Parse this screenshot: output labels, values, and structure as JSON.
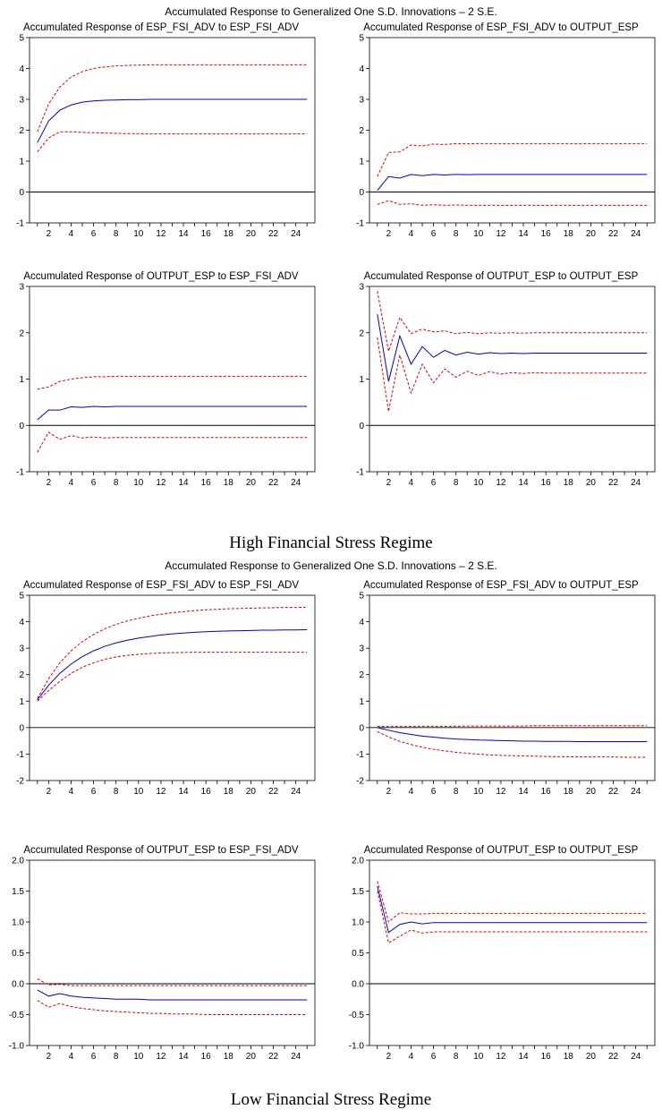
{
  "regimes": [
    {
      "supertitle": "Accumulated Response to Generalized One S.D. Innovations – 2 S.E.",
      "caption": "High Financial Stress Regime"
    },
    {
      "supertitle": "Accumulated Response to Generalized One S.D. Innovations – 2 S.E.",
      "caption": "Low Financial Stress Regime"
    }
  ],
  "colors": {
    "response": "#0000cc",
    "band": "#dd0000",
    "zero_line": "#000000"
  },
  "chart_data": [
    {
      "type": "line",
      "title": "Accumulated Response of ESP_FSI_ADV to ESP_FSI_ADV",
      "x": [
        1,
        2,
        3,
        4,
        5,
        6,
        7,
        8,
        9,
        10,
        11,
        12,
        13,
        14,
        15,
        16,
        17,
        18,
        19,
        20,
        21,
        22,
        23,
        24,
        25
      ],
      "xticks": [
        2,
        4,
        6,
        8,
        10,
        12,
        14,
        16,
        18,
        20,
        22,
        24
      ],
      "ylim": [
        -1,
        5
      ],
      "yticks": [
        -1,
        0,
        1,
        2,
        3,
        4,
        5
      ],
      "ytick_labels": [
        "-1",
        "0",
        "1",
        "2",
        "3",
        "4",
        "5"
      ],
      "series": [
        {
          "values": [
            1.6,
            2.3,
            2.65,
            2.82,
            2.91,
            2.95,
            2.97,
            2.98,
            2.99,
            2.99,
            3.0,
            3.0,
            3.0,
            3.0,
            3.0,
            3.0,
            3.0,
            3.0,
            3.0,
            3.0,
            3.0,
            3.0,
            3.0,
            3.0,
            3.0
          ]
        },
        {
          "values": [
            1.95,
            2.85,
            3.4,
            3.72,
            3.9,
            4.0,
            4.05,
            4.08,
            4.1,
            4.11,
            4.12,
            4.12,
            4.12,
            4.12,
            4.12,
            4.12,
            4.12,
            4.12,
            4.12,
            4.12,
            4.12,
            4.12,
            4.12,
            4.12,
            4.12
          ]
        },
        {
          "values": [
            1.3,
            1.75,
            1.95,
            1.95,
            1.93,
            1.92,
            1.91,
            1.9,
            1.89,
            1.89,
            1.88,
            1.88,
            1.88,
            1.88,
            1.88,
            1.88,
            1.88,
            1.88,
            1.88,
            1.88,
            1.88,
            1.88,
            1.88,
            1.88,
            1.88
          ]
        }
      ]
    },
    {
      "type": "line",
      "title": "Accumulated Response of ESP_FSI_ADV to OUTPUT_ESP",
      "x": [
        1,
        2,
        3,
        4,
        5,
        6,
        7,
        8,
        9,
        10,
        11,
        12,
        13,
        14,
        15,
        16,
        17,
        18,
        19,
        20,
        21,
        22,
        23,
        24,
        25
      ],
      "xticks": [
        2,
        4,
        6,
        8,
        10,
        12,
        14,
        16,
        18,
        20,
        22,
        24
      ],
      "ylim": [
        -1,
        5
      ],
      "yticks": [
        -1,
        0,
        1,
        2,
        3,
        4,
        5
      ],
      "ytick_labels": [
        "-1",
        "0",
        "1",
        "2",
        "3",
        "4",
        "5"
      ],
      "series": [
        {
          "values": [
            0.05,
            0.5,
            0.45,
            0.57,
            0.53,
            0.57,
            0.55,
            0.57,
            0.56,
            0.57,
            0.57,
            0.57,
            0.57,
            0.57,
            0.57,
            0.57,
            0.57,
            0.57,
            0.57,
            0.57,
            0.57,
            0.57,
            0.57,
            0.57,
            0.57
          ]
        },
        {
          "values": [
            0.5,
            1.28,
            1.3,
            1.52,
            1.49,
            1.55,
            1.54,
            1.57,
            1.56,
            1.57,
            1.57,
            1.57,
            1.57,
            1.57,
            1.57,
            1.57,
            1.57,
            1.57,
            1.57,
            1.57,
            1.57,
            1.57,
            1.57,
            1.57,
            1.57
          ]
        },
        {
          "values": [
            -0.4,
            -0.28,
            -0.4,
            -0.38,
            -0.43,
            -0.41,
            -0.43,
            -0.42,
            -0.43,
            -0.43,
            -0.43,
            -0.43,
            -0.43,
            -0.43,
            -0.43,
            -0.43,
            -0.43,
            -0.43,
            -0.43,
            -0.43,
            -0.43,
            -0.43,
            -0.43,
            -0.43,
            -0.43
          ]
        }
      ]
    },
    {
      "type": "line",
      "title": "Accumulated Response of OUTPUT_ESP to ESP_FSI_ADV",
      "x": [
        1,
        2,
        3,
        4,
        5,
        6,
        7,
        8,
        9,
        10,
        11,
        12,
        13,
        14,
        15,
        16,
        17,
        18,
        19,
        20,
        21,
        22,
        23,
        24,
        25
      ],
      "xticks": [
        2,
        4,
        6,
        8,
        10,
        12,
        14,
        16,
        18,
        20,
        22,
        24
      ],
      "ylim": [
        -1,
        3
      ],
      "yticks": [
        -1,
        0,
        1,
        2,
        3
      ],
      "ytick_labels": [
        "-1",
        "0",
        "1",
        "2",
        "3"
      ],
      "series": [
        {
          "values": [
            0.12,
            0.33,
            0.33,
            0.4,
            0.39,
            0.41,
            0.4,
            0.41,
            0.41,
            0.41,
            0.41,
            0.41,
            0.41,
            0.41,
            0.41,
            0.41,
            0.41,
            0.41,
            0.41,
            0.41,
            0.41,
            0.41,
            0.41,
            0.41,
            0.41
          ]
        },
        {
          "values": [
            0.78,
            0.83,
            0.95,
            1.0,
            1.03,
            1.05,
            1.05,
            1.06,
            1.06,
            1.06,
            1.06,
            1.06,
            1.06,
            1.06,
            1.06,
            1.06,
            1.06,
            1.06,
            1.06,
            1.06,
            1.06,
            1.06,
            1.06,
            1.06,
            1.06
          ]
        },
        {
          "values": [
            -0.58,
            -0.15,
            -0.3,
            -0.22,
            -0.27,
            -0.25,
            -0.27,
            -0.26,
            -0.26,
            -0.26,
            -0.26,
            -0.26,
            -0.26,
            -0.26,
            -0.26,
            -0.26,
            -0.26,
            -0.26,
            -0.26,
            -0.26,
            -0.26,
            -0.26,
            -0.26,
            -0.26,
            -0.26
          ]
        }
      ]
    },
    {
      "type": "line",
      "title": "Accumulated Response of OUTPUT_ESP to OUTPUT_ESP",
      "x": [
        1,
        2,
        3,
        4,
        5,
        6,
        7,
        8,
        9,
        10,
        11,
        12,
        13,
        14,
        15,
        16,
        17,
        18,
        19,
        20,
        21,
        22,
        23,
        24,
        25
      ],
      "xticks": [
        2,
        4,
        6,
        8,
        10,
        12,
        14,
        16,
        18,
        20,
        22,
        24
      ],
      "ylim": [
        -1,
        3
      ],
      "yticks": [
        -1,
        0,
        1,
        2,
        3
      ],
      "ytick_labels": [
        "-1",
        "0",
        "1",
        "2",
        "3"
      ],
      "series": [
        {
          "values": [
            2.4,
            0.95,
            1.93,
            1.32,
            1.7,
            1.47,
            1.62,
            1.52,
            1.58,
            1.54,
            1.57,
            1.55,
            1.56,
            1.55,
            1.56,
            1.56,
            1.56,
            1.56,
            1.56,
            1.56,
            1.56,
            1.56,
            1.56,
            1.56,
            1.56
          ]
        },
        {
          "values": [
            2.9,
            1.6,
            2.33,
            1.98,
            2.08,
            2.02,
            2.04,
            1.98,
            2.01,
            1.98,
            2.0,
            1.99,
            2.0,
            1.99,
            2.0,
            2.0,
            2.0,
            2.0,
            2.0,
            2.0,
            2.0,
            2.0,
            2.0,
            2.0,
            2.0
          ]
        },
        {
          "values": [
            1.9,
            0.3,
            1.52,
            0.7,
            1.32,
            0.92,
            1.22,
            1.04,
            1.17,
            1.08,
            1.16,
            1.11,
            1.14,
            1.12,
            1.14,
            1.13,
            1.13,
            1.13,
            1.13,
            1.13,
            1.13,
            1.13,
            1.13,
            1.13,
            1.13
          ]
        }
      ]
    },
    {
      "type": "line",
      "title": "Accumulated Response of ESP_FSI_ADV to ESP_FSI_ADV",
      "x": [
        1,
        2,
        3,
        4,
        5,
        6,
        7,
        8,
        9,
        10,
        11,
        12,
        13,
        14,
        15,
        16,
        17,
        18,
        19,
        20,
        21,
        22,
        23,
        24,
        25
      ],
      "xticks": [
        2,
        4,
        6,
        8,
        10,
        12,
        14,
        16,
        18,
        20,
        22,
        24
      ],
      "ylim": [
        -2,
        5
      ],
      "yticks": [
        -2,
        -1,
        0,
        1,
        2,
        3,
        4,
        5
      ],
      "ytick_labels": [
        "-2",
        "-1",
        "0",
        "1",
        "2",
        "3",
        "4",
        "5"
      ],
      "series": [
        {
          "values": [
            1.05,
            1.6,
            2.05,
            2.4,
            2.68,
            2.9,
            3.07,
            3.2,
            3.3,
            3.38,
            3.44,
            3.5,
            3.54,
            3.57,
            3.6,
            3.62,
            3.64,
            3.65,
            3.66,
            3.67,
            3.68,
            3.68,
            3.69,
            3.69,
            3.7
          ]
        },
        {
          "values": [
            1.1,
            1.85,
            2.45,
            2.9,
            3.25,
            3.52,
            3.73,
            3.9,
            4.03,
            4.13,
            4.22,
            4.28,
            4.34,
            4.38,
            4.42,
            4.45,
            4.47,
            4.49,
            4.5,
            4.51,
            4.52,
            4.53,
            4.54,
            4.54,
            4.55
          ]
        },
        {
          "values": [
            1.0,
            1.4,
            1.75,
            2.05,
            2.28,
            2.45,
            2.58,
            2.67,
            2.73,
            2.77,
            2.8,
            2.82,
            2.83,
            2.84,
            2.85,
            2.85,
            2.85,
            2.85,
            2.85,
            2.85,
            2.85,
            2.85,
            2.85,
            2.85,
            2.85
          ]
        }
      ]
    },
    {
      "type": "line",
      "title": "Accumulated Response of ESP_FSI_ADV to OUTPUT_ESP",
      "x": [
        1,
        2,
        3,
        4,
        5,
        6,
        7,
        8,
        9,
        10,
        11,
        12,
        13,
        14,
        15,
        16,
        17,
        18,
        19,
        20,
        21,
        22,
        23,
        24,
        25
      ],
      "xticks": [
        2,
        4,
        6,
        8,
        10,
        12,
        14,
        16,
        18,
        20,
        22,
        24
      ],
      "ylim": [
        -2,
        5
      ],
      "yticks": [
        -2,
        -1,
        0,
        1,
        2,
        3,
        4,
        5
      ],
      "ytick_labels": [
        "-2",
        "-1",
        "0",
        "1",
        "2",
        "3",
        "4",
        "5"
      ],
      "series": [
        {
          "values": [
            0.0,
            -0.1,
            -0.19,
            -0.26,
            -0.32,
            -0.36,
            -0.4,
            -0.43,
            -0.45,
            -0.47,
            -0.48,
            -0.49,
            -0.5,
            -0.51,
            -0.51,
            -0.52,
            -0.52,
            -0.52,
            -0.53,
            -0.53,
            -0.53,
            -0.53,
            -0.53,
            -0.53,
            -0.53
          ]
        },
        {
          "values": [
            0.05,
            0.04,
            0.04,
            0.04,
            0.05,
            0.05,
            0.05,
            0.05,
            0.06,
            0.06,
            0.06,
            0.06,
            0.06,
            0.06,
            0.07,
            0.07,
            0.07,
            0.07,
            0.07,
            0.07,
            0.07,
            0.07,
            0.07,
            0.07,
            0.07
          ]
        },
        {
          "values": [
            -0.15,
            -0.35,
            -0.52,
            -0.64,
            -0.74,
            -0.82,
            -0.88,
            -0.93,
            -0.97,
            -1.0,
            -1.03,
            -1.05,
            -1.06,
            -1.07,
            -1.08,
            -1.09,
            -1.1,
            -1.1,
            -1.11,
            -1.11,
            -1.11,
            -1.11,
            -1.12,
            -1.12,
            -1.12
          ]
        }
      ]
    },
    {
      "type": "line",
      "title": "Accumulated Response of OUTPUT_ESP to ESP_FSI_ADV",
      "x": [
        1,
        2,
        3,
        4,
        5,
        6,
        7,
        8,
        9,
        10,
        11,
        12,
        13,
        14,
        15,
        16,
        17,
        18,
        19,
        20,
        21,
        22,
        23,
        24,
        25
      ],
      "xticks": [
        2,
        4,
        6,
        8,
        10,
        12,
        14,
        16,
        18,
        20,
        22,
        24
      ],
      "ylim": [
        -1.0,
        2.0
      ],
      "yticks": [
        -1.0,
        -0.5,
        0.0,
        0.5,
        1.0,
        1.5,
        2.0
      ],
      "ytick_labels": [
        "-1.0",
        "-0.5",
        "0.0",
        "0.5",
        "1.0",
        "1.5",
        "2.0"
      ],
      "series": [
        {
          "values": [
            -0.1,
            -0.2,
            -0.16,
            -0.2,
            -0.22,
            -0.23,
            -0.24,
            -0.25,
            -0.25,
            -0.25,
            -0.26,
            -0.26,
            -0.26,
            -0.26,
            -0.26,
            -0.26,
            -0.26,
            -0.26,
            -0.26,
            -0.26,
            -0.26,
            -0.26,
            -0.26,
            -0.26,
            -0.26
          ]
        },
        {
          "values": [
            0.08,
            -0.02,
            -0.01,
            -0.03,
            -0.03,
            -0.03,
            -0.03,
            -0.03,
            -0.03,
            -0.03,
            -0.03,
            -0.03,
            -0.03,
            -0.03,
            -0.03,
            -0.03,
            -0.03,
            -0.03,
            -0.03,
            -0.03,
            -0.03,
            -0.03,
            -0.03,
            -0.03,
            -0.03
          ]
        },
        {
          "values": [
            -0.27,
            -0.38,
            -0.32,
            -0.37,
            -0.4,
            -0.42,
            -0.44,
            -0.45,
            -0.46,
            -0.47,
            -0.48,
            -0.48,
            -0.49,
            -0.49,
            -0.49,
            -0.5,
            -0.5,
            -0.5,
            -0.5,
            -0.5,
            -0.5,
            -0.5,
            -0.5,
            -0.5,
            -0.5
          ]
        }
      ]
    },
    {
      "type": "line",
      "title": "Accumulated Response of OUTPUT_ESP to OUTPUT_ESP",
      "x": [
        1,
        2,
        3,
        4,
        5,
        6,
        7,
        8,
        9,
        10,
        11,
        12,
        13,
        14,
        15,
        16,
        17,
        18,
        19,
        20,
        21,
        22,
        23,
        24,
        25
      ],
      "xticks": [
        2,
        4,
        6,
        8,
        10,
        12,
        14,
        16,
        18,
        20,
        22,
        24
      ],
      "ylim": [
        -1.0,
        2.0
      ],
      "yticks": [
        -1.0,
        -0.5,
        0.0,
        0.5,
        1.0,
        1.5,
        2.0
      ],
      "ytick_labels": [
        "-1.0",
        "-0.5",
        "0.0",
        "0.5",
        "1.0",
        "1.5",
        "2.0"
      ],
      "series": [
        {
          "values": [
            1.58,
            0.83,
            0.96,
            1.0,
            0.97,
            0.99,
            0.99,
            0.99,
            0.99,
            0.99,
            0.99,
            0.99,
            0.99,
            0.99,
            0.99,
            0.99,
            0.99,
            0.99,
            0.99,
            0.99,
            0.99,
            0.99,
            0.99,
            0.99,
            0.99
          ]
        },
        {
          "values": [
            1.66,
            1.0,
            1.15,
            1.13,
            1.13,
            1.14,
            1.14,
            1.14,
            1.14,
            1.14,
            1.14,
            1.14,
            1.14,
            1.14,
            1.14,
            1.14,
            1.14,
            1.14,
            1.14,
            1.14,
            1.14,
            1.14,
            1.14,
            1.14,
            1.14
          ]
        },
        {
          "values": [
            1.5,
            0.66,
            0.77,
            0.87,
            0.82,
            0.84,
            0.84,
            0.84,
            0.84,
            0.84,
            0.84,
            0.84,
            0.84,
            0.84,
            0.84,
            0.84,
            0.84,
            0.84,
            0.84,
            0.84,
            0.84,
            0.84,
            0.84,
            0.84,
            0.84
          ]
        }
      ]
    }
  ]
}
